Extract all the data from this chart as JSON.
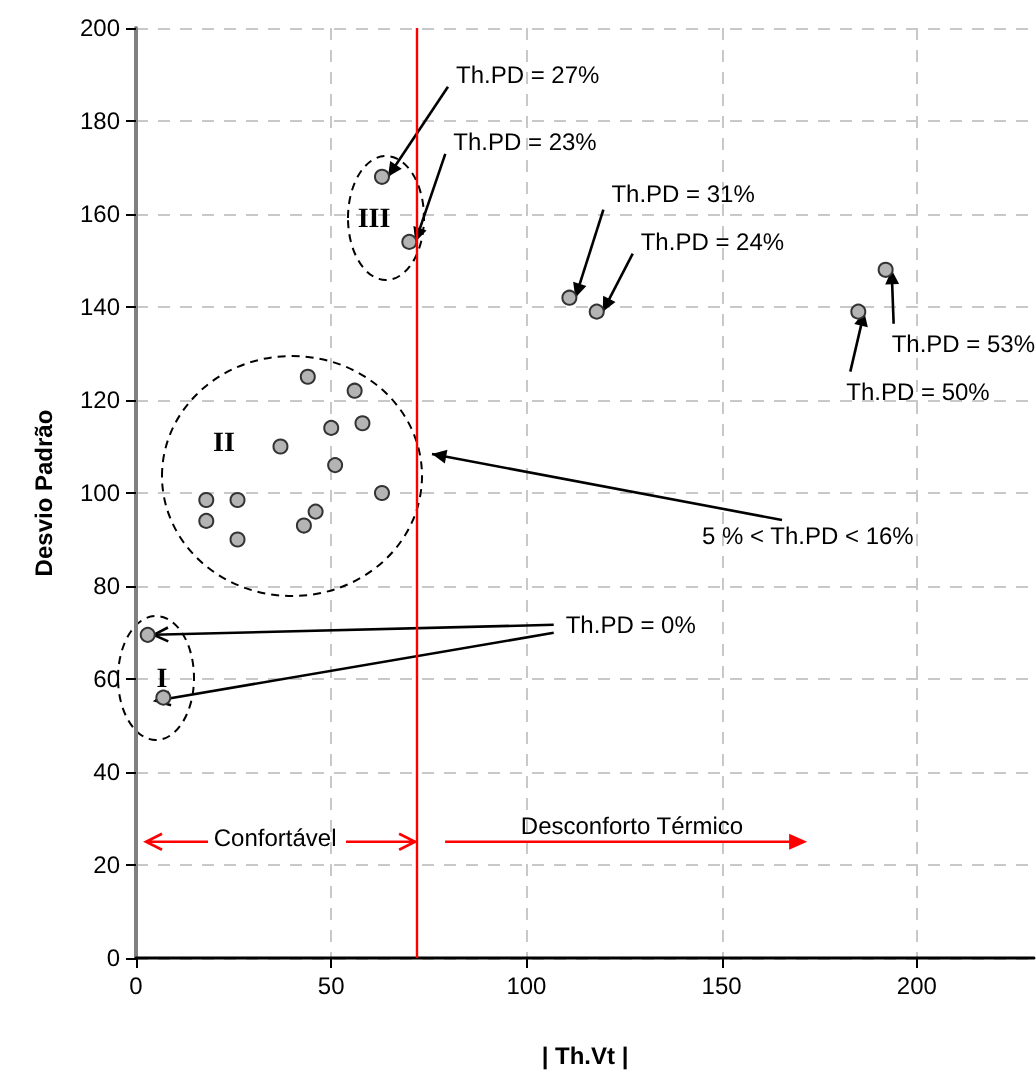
{
  "chart_data": {
    "type": "scatter",
    "xlabel": "| Th.Vt |",
    "ylabel": "Desvio Padrão",
    "x": [
      63,
      70,
      111,
      118,
      44,
      56,
      50,
      58,
      37,
      51,
      63,
      18,
      26,
      18,
      26,
      43,
      46,
      3,
      7,
      185,
      192
    ],
    "series": [
      {
        "color": "#b4b4b4",
        "values": [
          168,
          154,
          142,
          139,
          125,
          122,
          114,
          115,
          110,
          106,
          100,
          98.5,
          98.5,
          94,
          90,
          93,
          96,
          69.5,
          56,
          139,
          148
        ]
      }
    ],
    "xlim": [
      0,
      230
    ],
    "xticks": [
      0,
      50,
      100,
      150,
      200
    ],
    "ylim": [
      0,
      200
    ],
    "yticks": [
      0,
      20,
      40,
      60,
      80,
      100,
      120,
      140,
      160,
      180,
      200
    ],
    "grid": true,
    "marker": "circle",
    "ref_lines": [
      {
        "axis": "x",
        "value": 72,
        "color": "#ff0000"
      }
    ],
    "annotations": [
      {
        "text": "Th.PD = 27%",
        "x": 63,
        "y": 168
      },
      {
        "text": "Th.PD = 23%",
        "x": 70,
        "y": 154
      },
      {
        "text": "Th.PD = 31%",
        "x": 111,
        "y": 142
      },
      {
        "text": "Th.PD = 24%",
        "x": 118,
        "y": 139
      },
      {
        "text": "Th.PD = 53%",
        "x": 192,
        "y": 148
      },
      {
        "text": "Th.PD = 50%",
        "x": 185,
        "y": 139
      },
      "5 % < Th.PD < 16%",
      {
        "text": "Th.PD = 0%",
        "x": 3,
        "y": 69.5
      },
      "I",
      "II",
      "III",
      {
        "text": "Confortável",
        "x": 72,
        "y": 25
      },
      "Desconforto Térmico"
    ]
  }
}
